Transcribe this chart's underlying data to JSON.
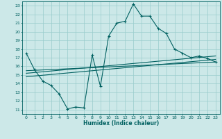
{
  "xlabel": "Humidex (Indice chaleur)",
  "xlim": [
    -0.5,
    23.5
  ],
  "ylim": [
    10.5,
    23.5
  ],
  "xticks": [
    0,
    1,
    2,
    3,
    4,
    5,
    6,
    7,
    8,
    9,
    10,
    11,
    12,
    13,
    14,
    15,
    16,
    17,
    18,
    19,
    20,
    21,
    22,
    23
  ],
  "yticks": [
    11,
    12,
    13,
    14,
    15,
    16,
    17,
    18,
    19,
    20,
    21,
    22,
    23
  ],
  "bg_color": "#cce8e8",
  "line_color": "#006060",
  "grid_color": "#99cccc",
  "line1_x": [
    0,
    1,
    2,
    3,
    4,
    5,
    6,
    7,
    8,
    9,
    10,
    11,
    12,
    13,
    14,
    15,
    16,
    17,
    18,
    19,
    20,
    21,
    22,
    23
  ],
  "line1_y": [
    17.5,
    15.6,
    14.3,
    13.8,
    12.8,
    11.1,
    11.3,
    11.2,
    17.3,
    13.7,
    19.5,
    21.0,
    21.2,
    23.2,
    21.8,
    21.8,
    20.4,
    19.8,
    18.0,
    17.5,
    17.0,
    17.2,
    16.9,
    16.5
  ],
  "line2_x": [
    0,
    23
  ],
  "line2_y": [
    14.8,
    16.8
  ],
  "line3_x": [
    0,
    23
  ],
  "line3_y": [
    15.2,
    17.2
  ],
  "line4_x": [
    0,
    23
  ],
  "line4_y": [
    15.5,
    16.5
  ]
}
